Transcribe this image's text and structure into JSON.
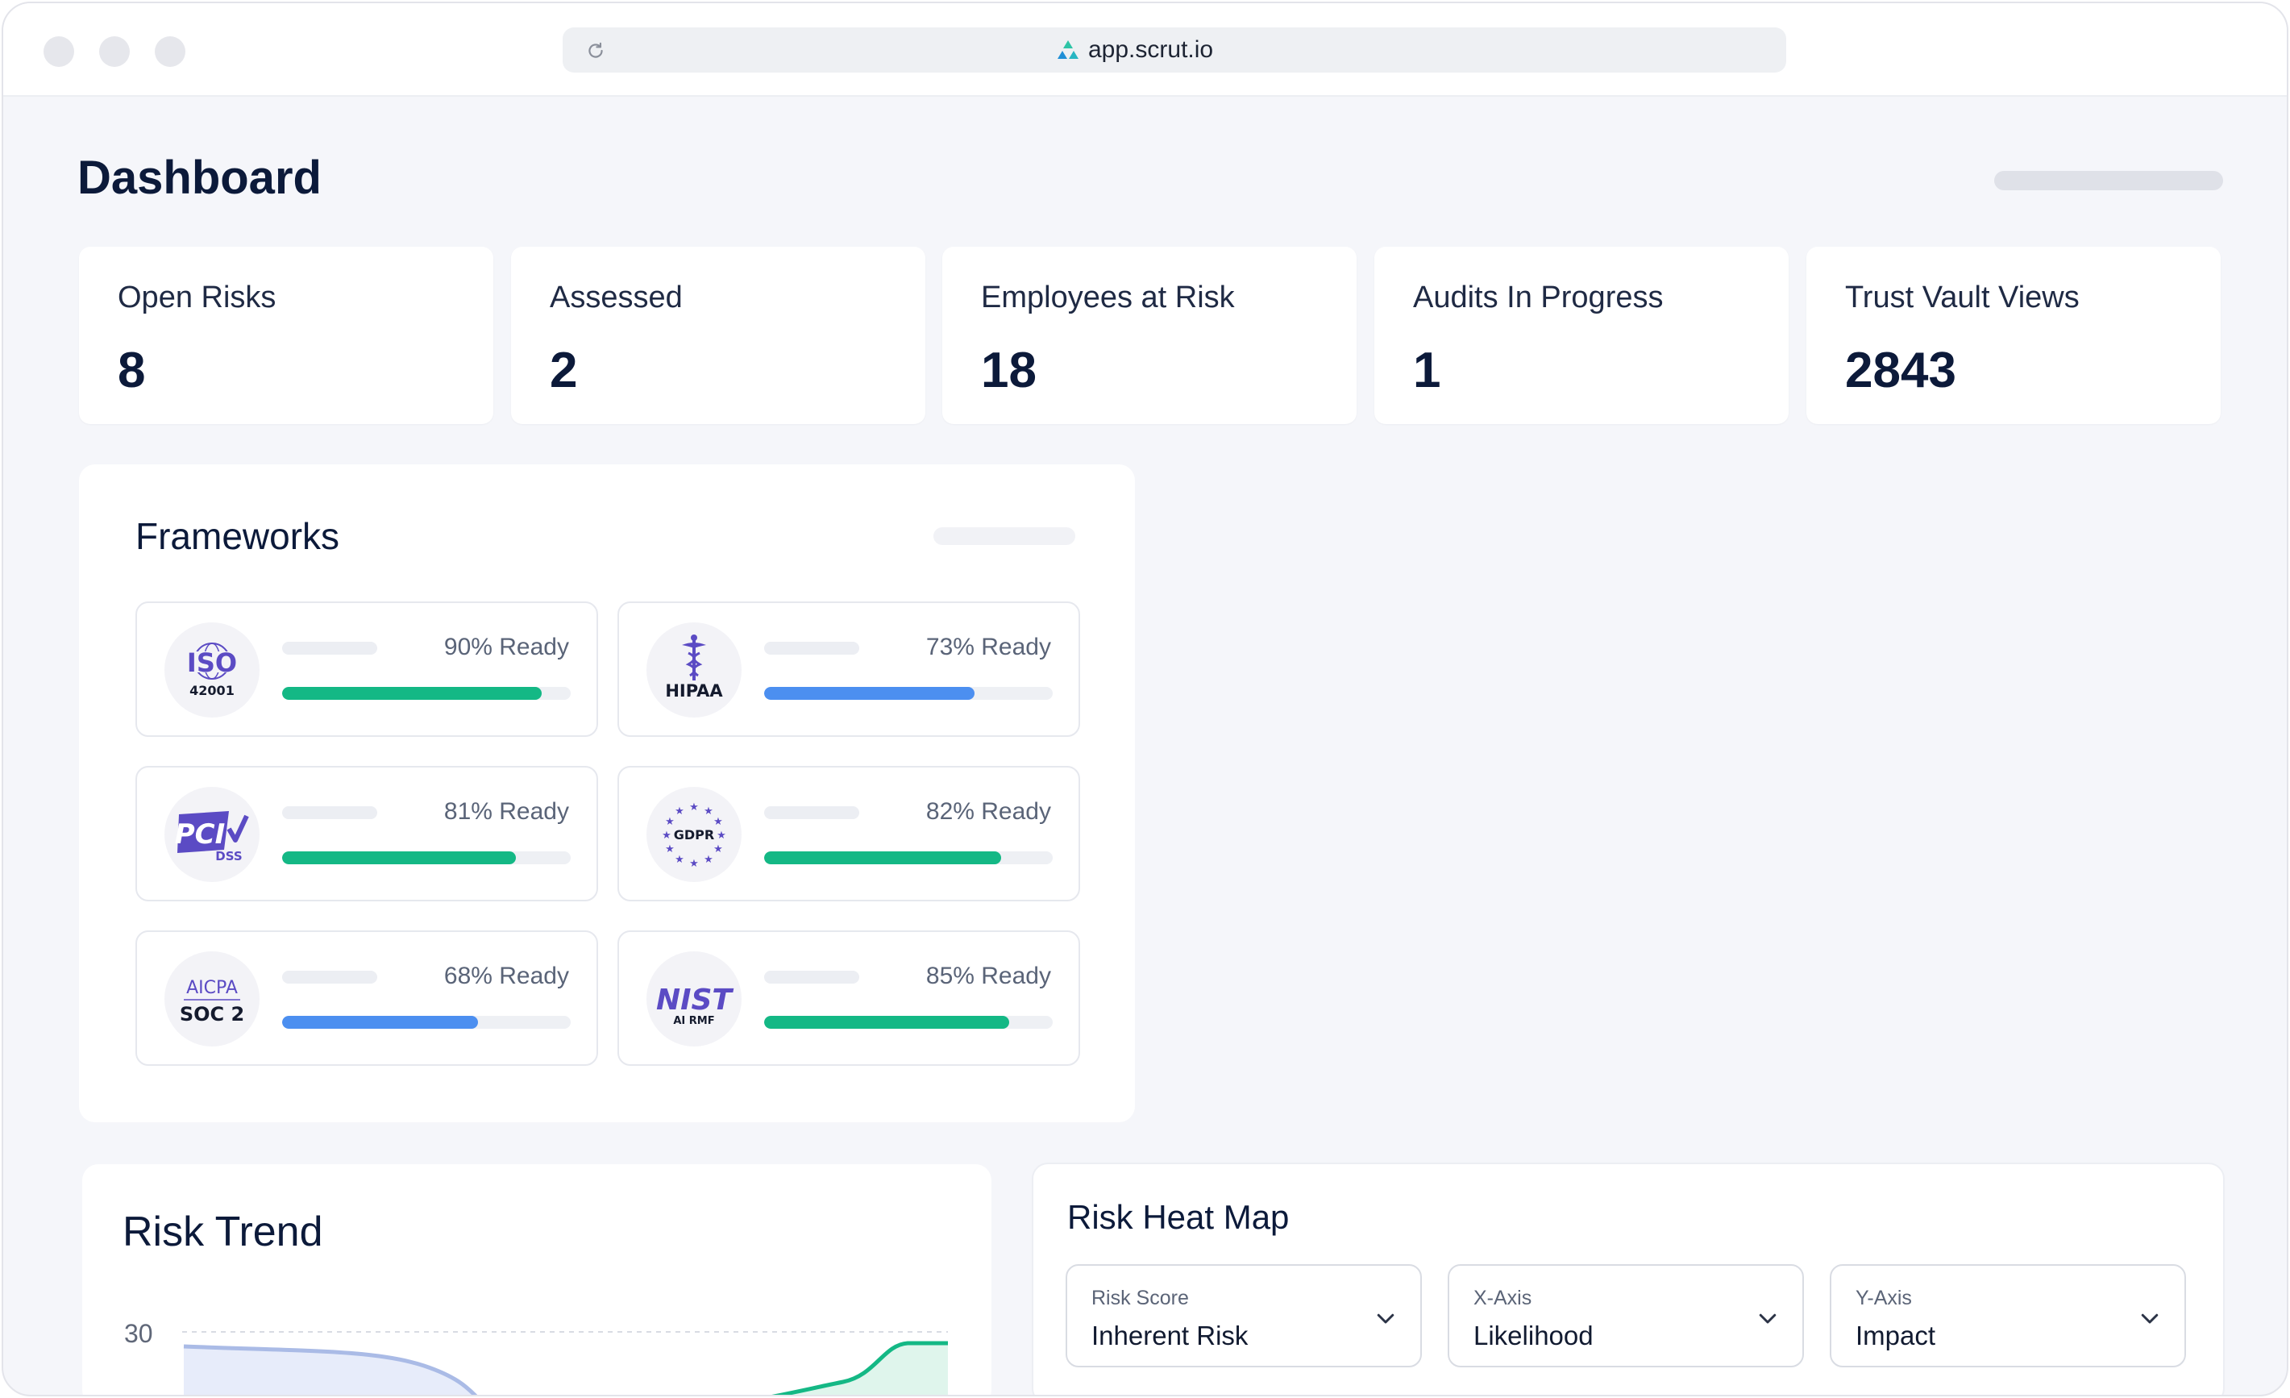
{
  "browser": {
    "url": "app.scrut.io"
  },
  "page": {
    "title": "Dashboard"
  },
  "stats": [
    {
      "label": "Open Risks",
      "value": "8"
    },
    {
      "label": "Assessed",
      "value": "2"
    },
    {
      "label": "Employees at Risk",
      "value": "18"
    },
    {
      "label": "Audits In Progress",
      "value": "1"
    },
    {
      "label": "Trust Vault Views",
      "value": "2843"
    }
  ],
  "frameworks": {
    "title": "Frameworks",
    "items": [
      {
        "name": "ISO 42001",
        "logo_text": "ISO",
        "logo_sub": "42001",
        "ready_label": "90% Ready",
        "ready": 90,
        "color": "#14b885",
        "icon": "iso-logo-icon"
      },
      {
        "name": "HIPAA",
        "logo_text": "HIPAA",
        "ready_label": "73% Ready",
        "ready": 73,
        "color": "#4c8ff0",
        "icon": "hipaa-caduceus-icon"
      },
      {
        "name": "PCI DSS",
        "logo_text": "PCI",
        "logo_sub": "DSS",
        "ready_label": "81% Ready",
        "ready": 81,
        "color": "#14b885",
        "icon": "pci-dss-logo-icon"
      },
      {
        "name": "GDPR",
        "logo_text": "GDPR",
        "ready_label": "82% Ready",
        "ready": 82,
        "color": "#14b885",
        "icon": "gdpr-stars-icon"
      },
      {
        "name": "AICPA SOC 2",
        "logo_text": "AICPA",
        "logo_sub": "SOC 2",
        "ready_label": "68% Ready",
        "ready": 68,
        "color": "#4c8ff0",
        "icon": "aicpa-soc2-logo-icon"
      },
      {
        "name": "NIST AI RMF",
        "logo_text": "NIST",
        "logo_sub": "AI RMF",
        "ready_label": "85% Ready",
        "ready": 85,
        "color": "#14b885",
        "icon": "nist-logo-icon"
      }
    ]
  },
  "risk_trend": {
    "title": "Risk Trend",
    "y_tick": "30"
  },
  "heat_map": {
    "title": "Risk Heat Map",
    "filters": [
      {
        "label": "Risk Score",
        "value": "Inherent Risk"
      },
      {
        "label": "X-Axis",
        "value": "Likelihood"
      },
      {
        "label": "Y-Axis",
        "value": "Impact"
      }
    ]
  },
  "colors": {
    "green": "#14b885",
    "blue": "#4c8ff0",
    "logo_purple": "#5b4bc4"
  }
}
